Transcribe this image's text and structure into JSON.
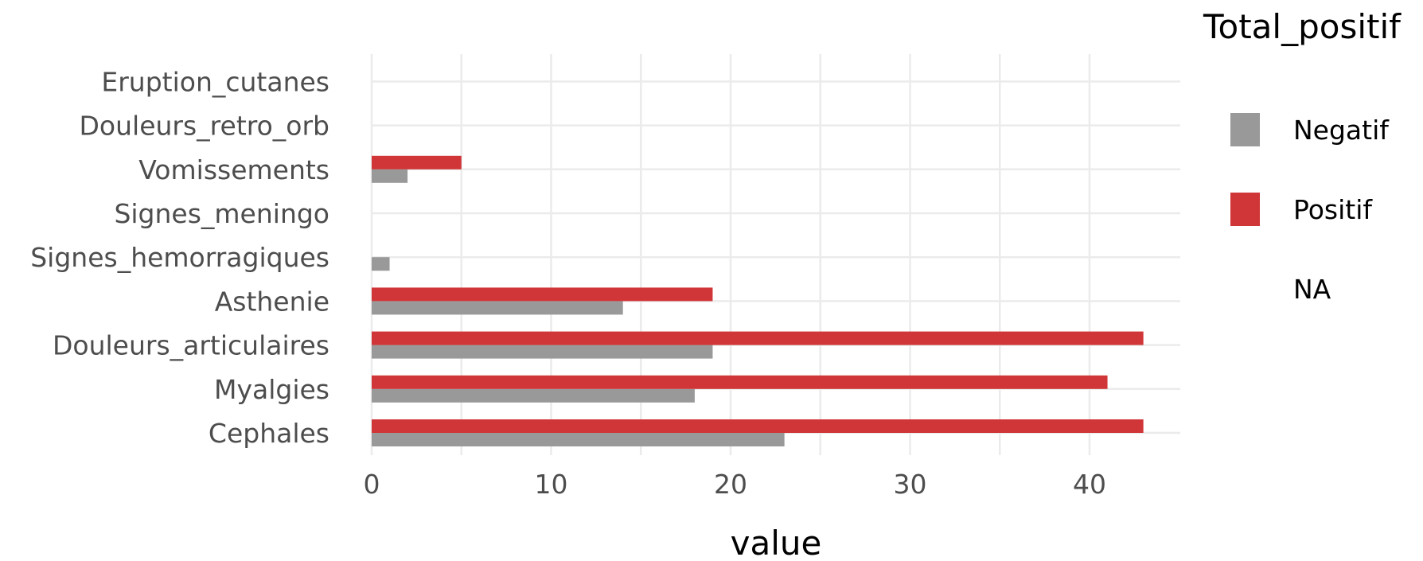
{
  "chart_data": {
    "type": "bar",
    "orientation": "horizontal",
    "categories": [
      "Cephales",
      "Myalgies",
      "Douleurs_articulaires",
      "Asthenie",
      "Signes_hemorragiques",
      "Signes_meningo",
      "Vomissements",
      "Douleurs_retro_orb",
      "Eruption_cutanes"
    ],
    "series": [
      {
        "name": "Negatif",
        "color": "#999999",
        "values": [
          23,
          18,
          19,
          14,
          1,
          0,
          2,
          0,
          0
        ]
      },
      {
        "name": "Positif",
        "color": "#d03537",
        "values": [
          43,
          41,
          43,
          19,
          0,
          0,
          5,
          0,
          0
        ]
      }
    ],
    "xlabel": "value",
    "ylabel": "",
    "xlim": [
      0,
      45
    ],
    "xticks": [
      0,
      10,
      20,
      30,
      40
    ],
    "grid": true,
    "legend": {
      "title": "Total_positif",
      "placement": "right",
      "entries": [
        {
          "label": "Negatif",
          "color": "#999999"
        },
        {
          "label": "Positif",
          "color": "#d03537"
        },
        {
          "label": "NA",
          "color": null
        }
      ]
    }
  }
}
